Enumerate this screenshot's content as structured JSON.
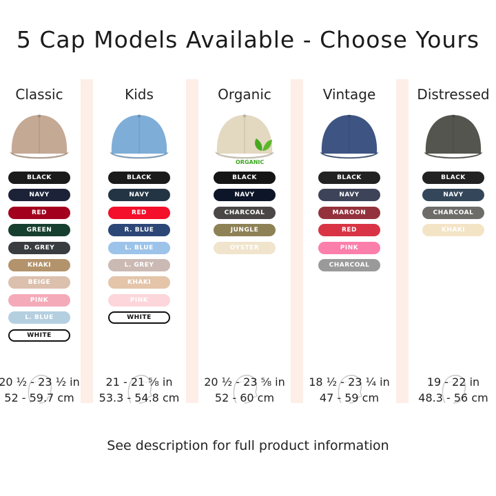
{
  "title": "5 Cap Models Available - Choose Yours",
  "footer": "See description for full product information",
  "models": [
    {
      "name": "Classic",
      "cap_color": "#c4a995",
      "size_in": "20 ½ - 23 ½ in",
      "size_cm": "52 - 59.7 cm",
      "colors": [
        {
          "label": "BLACK",
          "hex": "#1b1b1b"
        },
        {
          "label": "NAVY",
          "hex": "#1c2238"
        },
        {
          "label": "RED",
          "hex": "#a3001e"
        },
        {
          "label": "GREEN",
          "hex": "#163f2f"
        },
        {
          "label": "D. GREY",
          "hex": "#3a3d3f"
        },
        {
          "label": "KHAKI",
          "hex": "#b3936c"
        },
        {
          "label": "BEIGE",
          "hex": "#dcc0ae"
        },
        {
          "label": "PINK",
          "hex": "#f4aab8"
        },
        {
          "label": "L. BLUE",
          "hex": "#b4cfe0"
        },
        {
          "label": "WHITE",
          "hex": "#ffffff"
        }
      ]
    },
    {
      "name": "Kids",
      "cap_color": "#7eaed8",
      "size_in": "21 - 21 ⅝ in",
      "size_cm": "53.3 - 54.8 cm",
      "colors": [
        {
          "label": "BLACK",
          "hex": "#1b1b1b"
        },
        {
          "label": "NAVY",
          "hex": "#233444"
        },
        {
          "label": "RED",
          "hex": "#f40f2a"
        },
        {
          "label": "R. BLUE",
          "hex": "#2c4676"
        },
        {
          "label": "L. BLUE",
          "hex": "#9cc3ea"
        },
        {
          "label": "L. GREY",
          "hex": "#cbb9b4"
        },
        {
          "label": "KHAKI",
          "hex": "#e4c5a9"
        },
        {
          "label": "PINK",
          "hex": "#fcd6da"
        },
        {
          "label": "WHITE",
          "hex": "#ffffff"
        }
      ]
    },
    {
      "name": "Organic",
      "cap_color": "#e3d8c0",
      "badge": "ORGANIC",
      "size_in": "20 ½ - 23 ⅝ in",
      "size_cm": "52 - 60 cm",
      "colors": [
        {
          "label": "BLACK",
          "hex": "#151515"
        },
        {
          "label": "NAVY",
          "hex": "#0d1629"
        },
        {
          "label": "CHARCOAL",
          "hex": "#4b4747"
        },
        {
          "label": "JUNGLE",
          "hex": "#8e8155"
        },
        {
          "label": "OYSTER",
          "hex": "#f0e4cc"
        }
      ]
    },
    {
      "name": "Vintage",
      "cap_color": "#3e5583",
      "size_in": "18 ½ - 23 ¼ in",
      "size_cm": "47 - 59 cm",
      "colors": [
        {
          "label": "BLACK",
          "hex": "#222222"
        },
        {
          "label": "NAVY",
          "hex": "#3d4459"
        },
        {
          "label": "MAROON",
          "hex": "#93323c"
        },
        {
          "label": "RED",
          "hex": "#d93445"
        },
        {
          "label": "PINK",
          "hex": "#fb7eab"
        },
        {
          "label": "CHARCOAL",
          "hex": "#9a9a9a"
        }
      ]
    },
    {
      "name": "Distressed",
      "cap_color": "#55554f",
      "size_in": "19 - 22 in",
      "size_cm": "48.3 - 56 cm",
      "colors": [
        {
          "label": "BLACK",
          "hex": "#222222"
        },
        {
          "label": "NAVY",
          "hex": "#34475a"
        },
        {
          "label": "CHARCOAL",
          "hex": "#6d6c69"
        },
        {
          "label": "KHAKI",
          "hex": "#f4e4c6"
        }
      ]
    }
  ]
}
